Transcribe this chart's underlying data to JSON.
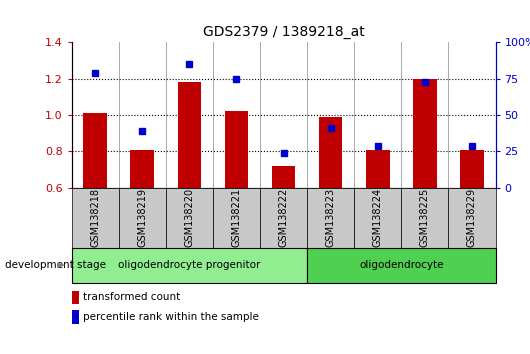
{
  "title": "GDS2379 / 1389218_at",
  "samples": [
    "GSM138218",
    "GSM138219",
    "GSM138220",
    "GSM138221",
    "GSM138222",
    "GSM138223",
    "GSM138224",
    "GSM138225",
    "GSM138229"
  ],
  "red_values": [
    1.01,
    0.81,
    1.18,
    1.02,
    0.72,
    0.99,
    0.81,
    1.2,
    0.81
  ],
  "blue_values": [
    1.23,
    0.91,
    1.28,
    1.2,
    0.79,
    0.93,
    0.83,
    1.18,
    0.83
  ],
  "ylim_left": [
    0.6,
    1.4
  ],
  "ylim_right": [
    0,
    100
  ],
  "yticks_left": [
    0.6,
    0.8,
    1.0,
    1.2,
    1.4
  ],
  "yticks_right": [
    0,
    25,
    50,
    75,
    100
  ],
  "ytick_labels_right": [
    "0",
    "25",
    "50",
    "75",
    "100%"
  ],
  "red_color": "#c00000",
  "blue_color": "#0000cc",
  "groups": [
    {
      "label": "oligodendrocyte progenitor",
      "start": 0,
      "end": 5,
      "color": "#90ee90"
    },
    {
      "label": "oligodendrocyte",
      "start": 5,
      "end": 9,
      "color": "#50d050"
    }
  ],
  "group_box_color": "#c8c8c8",
  "legend_red_label": "transformed count",
  "legend_blue_label": "percentile rank within the sample",
  "development_stage_label": "development stage",
  "background_color": "#ffffff"
}
